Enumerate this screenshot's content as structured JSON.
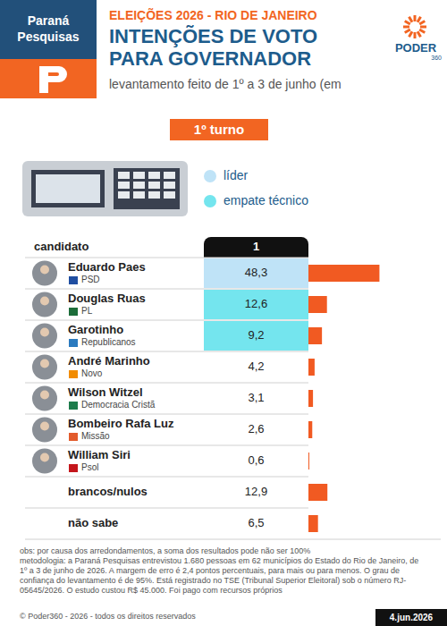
{
  "header": {
    "brand": "Paraná Pesquisas",
    "logo": "PODER",
    "logo_sub": "360"
  },
  "chart_data": {
    "type": "bar",
    "orientation": "horizontal",
    "supertitle": "ELEIÇÕES 2026 - RIO DE JANEIRO",
    "title": "INTENÇÕES DE VOTO PARA GOVERNADOR",
    "subtitle": "levantamento feito de 1º a 3 de junho (em",
    "round": "1º turno",
    "key": [
      {
        "label": "líder",
        "color": "#bfe3f7"
      },
      {
        "label": "empate técnico",
        "color": "#74e5ee"
      }
    ],
    "key_index": [
      0,
      1,
      1,
      null,
      null,
      null,
      null,
      null,
      null
    ],
    "row_header": "candidato",
    "column_header": "1",
    "categories": [
      "Eduardo Paes",
      "Douglas Ruas",
      "Garotinho",
      "André Marinho",
      "Wilson Witzel",
      "Bombeiro Rafa Luz",
      "William Siri",
      "brancos/nulos",
      "não sabe"
    ],
    "parties": [
      "PSD",
      "PL",
      "Republicanos",
      "Novo",
      "Democracia Cristã",
      "Missão",
      "Psol",
      null,
      null
    ],
    "values": [
      48.3,
      12.6,
      9.2,
      4.2,
      3.1,
      2.6,
      0.6,
      12.9,
      6.5
    ],
    "value_labels": [
      "48,3",
      "12,6",
      "9,2",
      "4,2",
      "3,1",
      "2,6",
      "0,6",
      "12,9",
      "6,5"
    ],
    "color": "#f15a22",
    "xlim": [
      0,
      90
    ],
    "tick_labels": false,
    "data_labels": true
  },
  "footer": {
    "note": "obs: por causa dos arredondamentos, a soma dos resultados pode não ser 100%",
    "methodology": "metodologia: a Paraná Pesquisas entrevistou 1.680 pessoas em 62 municípios do Estado do Rio de Janeiro, de 1º a 3 de junho de 2026. A margem de erro é 2,4 pontos percentuais, para mais ou para menos. O grau de confiança do levantamento é de 95%. Está registrado no TSE (Tribunal Superior Eleitoral) sob o número RJ-05645/2026. O estudo custou R$ 45.000. Foi pago com recursos próprios",
    "copyright": "© Poder360 - 2026 - todos os direitos reservados",
    "date": "4.jun.2026"
  }
}
